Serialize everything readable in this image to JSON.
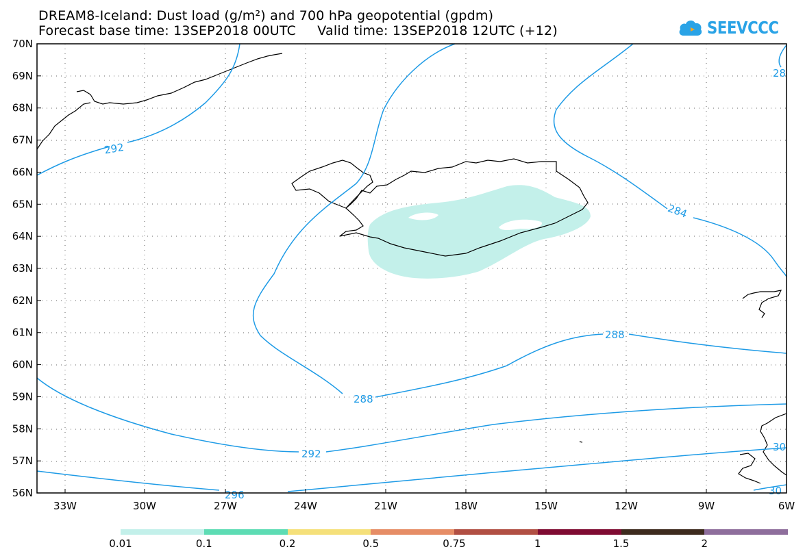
{
  "title": {
    "line1": "DREAM8-Iceland: Dust load (g/m²) and 700 hPa geopotential (gpdm)",
    "line2": "Forecast base time: 13SEP2018 00UTC     Valid time: 13SEP2018 12UTC (+12)"
  },
  "logo": {
    "text": "SEEVCCC",
    "icon": "cloud-icon",
    "color": "#2aa3e6"
  },
  "map": {
    "lon_range": [
      -34.5,
      -6
    ],
    "lat_range": [
      56,
      70
    ],
    "lat_labels": [
      "70N",
      "69N",
      "68N",
      "67N",
      "66N",
      "65N",
      "64N",
      "63N",
      "62N",
      "61N",
      "60N",
      "59N",
      "58N",
      "57N",
      "56N"
    ],
    "lon_labels": [
      "33W",
      "30W",
      "27W",
      "24W",
      "21W",
      "18W",
      "15W",
      "12W",
      "9W",
      "6W"
    ],
    "contour_color": "#1e9be6",
    "contour_labels": [
      "292",
      "284",
      "288",
      "288",
      "292",
      "296",
      "28",
      "30",
      "30"
    ],
    "dust_color": "#c3f0ea"
  },
  "colorbar": {
    "labels": [
      "0.01",
      "0.1",
      "0.2",
      "0.5",
      "0.75",
      "1",
      "1.5",
      "2"
    ],
    "colors": [
      "#c3f0ea",
      "#5ddcb4",
      "#f5e07a",
      "#e68d66",
      "#b14f43",
      "#7f0b32",
      "#3d2b1e",
      "#8e6e9c"
    ]
  }
}
